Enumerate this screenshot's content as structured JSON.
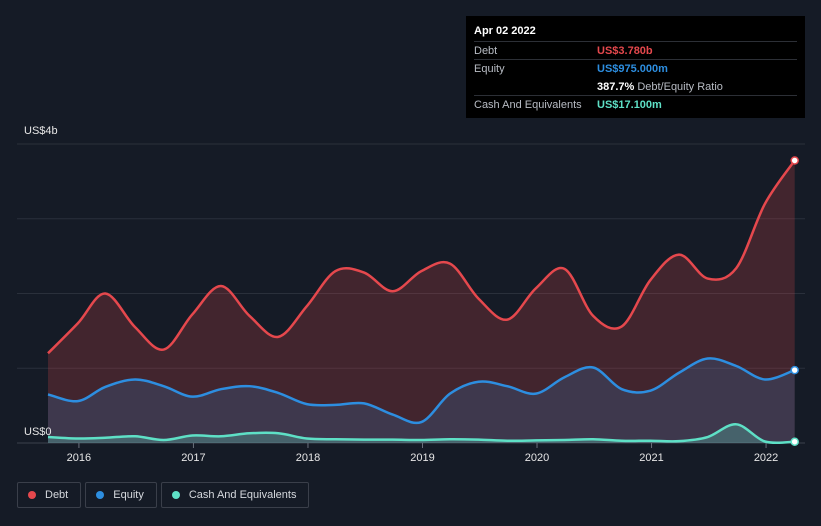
{
  "chart_data": {
    "type": "area",
    "ylim": [
      0,
      4000000000
    ],
    "y_axis_labels": {
      "max": "US$4b",
      "min": "US$0"
    },
    "x_tick_labels": [
      "2016",
      "2017",
      "2018",
      "2019",
      "2020",
      "2021",
      "2022"
    ],
    "x_ticks": [
      2016,
      2017,
      2018,
      2019,
      2020,
      2021,
      2022
    ],
    "xlim": [
      2015.73,
      2022.34
    ],
    "grid": true,
    "series": [
      {
        "name": "Debt",
        "color": "#e5484d",
        "x": [
          2015.73,
          2015.99,
          2016.23,
          2016.49,
          2016.74,
          2016.99,
          2017.24,
          2017.49,
          2017.74,
          2017.99,
          2018.24,
          2018.49,
          2018.74,
          2018.99,
          2019.24,
          2019.49,
          2019.74,
          2019.99,
          2020.24,
          2020.49,
          2020.74,
          2020.99,
          2021.24,
          2021.49,
          2021.74,
          2021.99,
          2022.25
        ],
        "values": [
          1200000000,
          1600000000,
          2000000000,
          1550000000,
          1250000000,
          1720000000,
          2100000000,
          1700000000,
          1420000000,
          1830000000,
          2300000000,
          2280000000,
          2030000000,
          2300000000,
          2400000000,
          1930000000,
          1650000000,
          2070000000,
          2330000000,
          1700000000,
          1560000000,
          2180000000,
          2520000000,
          2200000000,
          2340000000,
          3200000000,
          3780000000
        ]
      },
      {
        "name": "Equity",
        "color": "#2d8ee0",
        "x": [
          2015.73,
          2015.99,
          2016.23,
          2016.49,
          2016.74,
          2016.99,
          2017.24,
          2017.49,
          2017.74,
          2017.99,
          2018.24,
          2018.49,
          2018.74,
          2018.99,
          2019.24,
          2019.49,
          2019.74,
          2019.99,
          2020.24,
          2020.49,
          2020.74,
          2020.99,
          2021.24,
          2021.49,
          2021.74,
          2021.99,
          2022.25
        ],
        "values": [
          650000000,
          560000000,
          750000000,
          850000000,
          760000000,
          620000000,
          720000000,
          760000000,
          670000000,
          520000000,
          510000000,
          530000000,
          380000000,
          280000000,
          660000000,
          820000000,
          760000000,
          660000000,
          880000000,
          1010000000,
          720000000,
          700000000,
          940000000,
          1130000000,
          1030000000,
          850000000,
          975000000
        ]
      },
      {
        "name": "Cash And Equivalents",
        "color": "#5ee0c6",
        "x": [
          2015.73,
          2015.99,
          2016.23,
          2016.49,
          2016.74,
          2016.99,
          2017.24,
          2017.49,
          2017.74,
          2017.99,
          2018.24,
          2018.49,
          2018.74,
          2018.99,
          2019.24,
          2019.49,
          2019.74,
          2019.99,
          2020.24,
          2020.49,
          2020.74,
          2020.99,
          2021.24,
          2021.49,
          2021.74,
          2021.99,
          2022.25
        ],
        "values": [
          80000000,
          60000000,
          70000000,
          90000000,
          40000000,
          100000000,
          90000000,
          130000000,
          130000000,
          60000000,
          50000000,
          45000000,
          45000000,
          40000000,
          50000000,
          45000000,
          30000000,
          35000000,
          40000000,
          50000000,
          30000000,
          30000000,
          25000000,
          80000000,
          250000000,
          20000000,
          17100000
        ]
      }
    ]
  },
  "tooltip": {
    "date": "Apr 02 2022",
    "rows": [
      {
        "label": "Debt",
        "value": "US$3.780b",
        "color": "#e5484d"
      },
      {
        "label": "Equity",
        "value": "US$975.000m",
        "color": "#2d8ee0"
      },
      {
        "label": "",
        "value": "387.7%",
        "extra": "Debt/Equity Ratio",
        "color": "#ffffff"
      },
      {
        "label": "Cash And Equivalents",
        "value": "US$17.100m",
        "color": "#5ee0c6"
      }
    ]
  },
  "legend": [
    {
      "label": "Debt",
      "color": "#e5484d"
    },
    {
      "label": "Equity",
      "color": "#2d8ee0"
    },
    {
      "label": "Cash And Equivalents",
      "color": "#5ee0c6"
    }
  ]
}
